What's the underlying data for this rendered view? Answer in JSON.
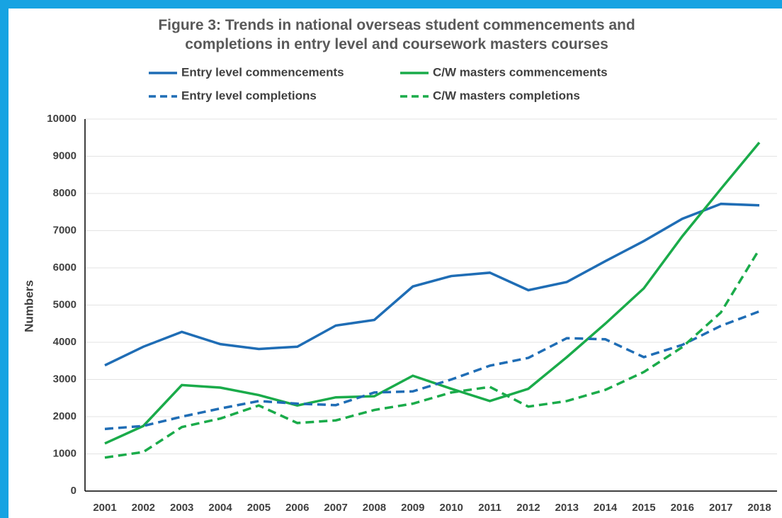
{
  "chart_data": {
    "type": "line",
    "title": "Figure 3: Trends in national overseas student commencements and completions in entry level and coursework masters courses",
    "y_label": "Numbers",
    "categories": [
      "2001",
      "2002",
      "2003",
      "2004",
      "2005",
      "2006",
      "2007",
      "2008",
      "2009",
      "2010",
      "2011",
      "2012",
      "2013",
      "2014",
      "2015",
      "2016",
      "2017",
      "2018"
    ],
    "series": [
      {
        "name": "Entry level commencements",
        "color": "#1f6db5",
        "dashed": false,
        "values": [
          3380,
          3880,
          4280,
          3950,
          3820,
          3880,
          4450,
          4600,
          5500,
          5780,
          5870,
          5400,
          5620,
          6180,
          6720,
          7320,
          7720,
          7680
        ]
      },
      {
        "name": "C/W masters commencements",
        "color": "#1aab4a",
        "dashed": false,
        "values": [
          1280,
          1750,
          2850,
          2780,
          2580,
          2300,
          2520,
          2550,
          3100,
          2750,
          2420,
          2750,
          3600,
          4500,
          5450,
          6850,
          8120,
          9370
        ]
      },
      {
        "name": "Entry level completions",
        "color": "#1f6db5",
        "dashed": true,
        "values": [
          1670,
          1750,
          2000,
          2220,
          2420,
          2350,
          2310,
          2650,
          2680,
          3000,
          3370,
          3580,
          4110,
          4080,
          3600,
          3930,
          4440,
          4830
        ]
      },
      {
        "name": "C/W masters completions",
        "color": "#1aab4a",
        "dashed": true,
        "values": [
          900,
          1050,
          1720,
          1950,
          2300,
          1830,
          1900,
          2180,
          2350,
          2650,
          2800,
          2270,
          2420,
          2720,
          3200,
          3870,
          4800,
          6500
        ]
      }
    ],
    "ylim": [
      0,
      10000
    ],
    "yticks": [
      0,
      1000,
      2000,
      3000,
      4000,
      5000,
      6000,
      7000,
      8000,
      9000,
      10000
    ],
    "grid": true,
    "legend": "top"
  }
}
